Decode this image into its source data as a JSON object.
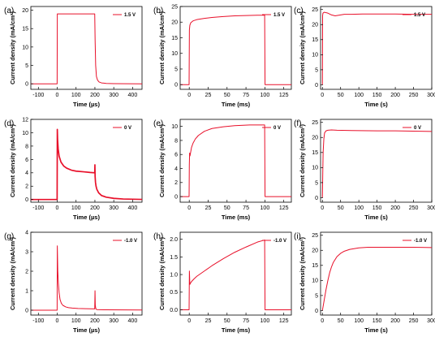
{
  "figure": {
    "colors": {
      "series": "#e8102a",
      "axis": "#000000",
      "background": "#ffffff"
    }
  },
  "chart_data": [
    {
      "panel": "(a)",
      "type": "line",
      "xlabel": "Time (µs)",
      "ylabel": "Current density (mA/cm²)",
      "xlim": [
        -140,
        450
      ],
      "xticks": [
        "-100",
        "0",
        "100",
        "200",
        "300",
        "400"
      ],
      "xtick_values": [
        -100,
        0,
        100,
        200,
        300,
        400
      ],
      "ylim": [
        -1.5,
        21
      ],
      "yticks": [
        "0",
        "5",
        "10",
        "15",
        "20"
      ],
      "ytick_values": [
        0,
        5,
        10,
        15,
        20
      ],
      "legend": "top-right",
      "series": [
        {
          "name": "1.5 V",
          "x": [
            -140,
            -0.5,
            0.5,
            199,
            201,
            204,
            208,
            214,
            222,
            235,
            260,
            300,
            450
          ],
          "y": [
            0,
            0,
            19.0,
            19.0,
            12.0,
            5.0,
            2.0,
            1.0,
            0.5,
            0.25,
            0.1,
            0.05,
            0.0
          ]
        }
      ]
    },
    {
      "panel": "(b)",
      "type": "line",
      "xlabel": "Time (ms)",
      "ylabel": "Current density (mA/cm²)",
      "xlim": [
        -12,
        135
      ],
      "xticks": [
        "0",
        "25",
        "50",
        "75",
        "100",
        "125"
      ],
      "xtick_values": [
        0,
        25,
        50,
        75,
        100,
        125
      ],
      "ylim": [
        -1.5,
        25
      ],
      "yticks": [
        "0",
        "5",
        "10",
        "15",
        "20",
        "25"
      ],
      "ytick_values": [
        0,
        5,
        10,
        15,
        20,
        25
      ],
      "legend": "top-right",
      "series": [
        {
          "name": "1.5 V",
          "x": [
            -12,
            -0.2,
            0.2,
            0.8,
            2,
            5,
            10,
            20,
            30,
            45,
            60,
            75,
            90,
            99.7,
            100.2,
            135
          ],
          "y": [
            0,
            0,
            17.5,
            19.0,
            19.8,
            20.4,
            20.8,
            21.2,
            21.5,
            21.8,
            22.0,
            22.1,
            22.2,
            22.2,
            0,
            0
          ]
        }
      ]
    },
    {
      "panel": "(c)",
      "type": "line",
      "xlabel": "Time (s)",
      "ylabel": "Current density (mA/cm²)",
      "xlim": [
        -5,
        300
      ],
      "xticks": [
        "0",
        "50",
        "100",
        "150",
        "200",
        "250",
        "300"
      ],
      "xtick_values": [
        0,
        50,
        100,
        150,
        200,
        250,
        300
      ],
      "ylim": [
        -1.5,
        26
      ],
      "yticks": [
        "0",
        "5",
        "10",
        "15",
        "20",
        "25"
      ],
      "ytick_values": [
        0,
        5,
        10,
        15,
        20,
        25
      ],
      "legend": "top-right",
      "series": [
        {
          "name": "1.5 V",
          "x": [
            0,
            0.6,
            1.5,
            5,
            15,
            25,
            35,
            45,
            60,
            80,
            110,
            150,
            200,
            250,
            300
          ],
          "y": [
            0,
            23.0,
            23.8,
            24.1,
            23.8,
            23.2,
            22.9,
            23.1,
            23.4,
            23.4,
            23.5,
            23.5,
            23.5,
            23.4,
            23.4
          ]
        }
      ]
    },
    {
      "panel": "(d)",
      "type": "line",
      "xlabel": "Time (µs)",
      "ylabel": "Current density (mA/cm²)",
      "xlim": [
        -140,
        450
      ],
      "xticks": [
        "-100",
        "0",
        "100",
        "200",
        "300",
        "400"
      ],
      "xtick_values": [
        -100,
        0,
        100,
        200,
        300,
        400
      ],
      "ylim": [
        -0.4,
        12
      ],
      "yticks": [
        "0",
        "2",
        "4",
        "6",
        "8",
        "10",
        "12"
      ],
      "ytick_values": [
        0,
        2,
        4,
        6,
        8,
        10,
        12
      ],
      "legend": "top-right",
      "series": [
        {
          "name": "0 V",
          "x": [
            -140,
            -0.5,
            0.5,
            2,
            5,
            10,
            20,
            35,
            50,
            75,
            100,
            140,
            175,
            199,
            200,
            201,
            203,
            206,
            210,
            220,
            235,
            260,
            300,
            350,
            450
          ],
          "y": [
            0,
            0,
            10.5,
            9.0,
            7.6,
            6.5,
            5.6,
            5.0,
            4.7,
            4.4,
            4.25,
            4.15,
            4.05,
            4.0,
            5.2,
            3.5,
            2.6,
            2.0,
            1.55,
            1.0,
            0.6,
            0.35,
            0.18,
            0.08,
            0.02
          ]
        }
      ]
    },
    {
      "panel": "(e)",
      "type": "line",
      "xlabel": "Time (ms)",
      "ylabel": "Current density (mA/cm²)",
      "xlim": [
        -12,
        135
      ],
      "xticks": [
        "0",
        "25",
        "50",
        "75",
        "100",
        "125"
      ],
      "xtick_values": [
        0,
        25,
        50,
        75,
        100,
        125
      ],
      "ylim": [
        -0.8,
        11
      ],
      "yticks": [
        "0",
        "2",
        "4",
        "6",
        "8",
        "10"
      ],
      "ytick_values": [
        0,
        2,
        4,
        6,
        8,
        10
      ],
      "legend": "top-right",
      "series": [
        {
          "name": "0 V",
          "x": [
            -12,
            -0.2,
            0.1,
            0.5,
            1,
            2,
            3,
            5,
            8,
            12,
            20,
            30,
            45,
            60,
            80,
            99.7,
            100.2,
            135
          ],
          "y": [
            0,
            0,
            4.5,
            6.2,
            5.8,
            6.4,
            7.0,
            7.6,
            8.2,
            8.7,
            9.3,
            9.7,
            9.95,
            10.1,
            10.2,
            10.2,
            0,
            0
          ]
        }
      ]
    },
    {
      "panel": "(f)",
      "type": "line",
      "xlabel": "Time (s)",
      "ylabel": "Current density (mA/cm²)",
      "xlim": [
        -5,
        300
      ],
      "xticks": [
        "0",
        "50",
        "100",
        "150",
        "200",
        "250",
        "300"
      ],
      "xtick_values": [
        0,
        50,
        100,
        150,
        200,
        250,
        300
      ],
      "ylim": [
        -1.5,
        26
      ],
      "yticks": [
        "0",
        "5",
        "10",
        "15",
        "20",
        "25"
      ],
      "ytick_values": [
        0,
        5,
        10,
        15,
        20,
        25
      ],
      "legend": "top-right",
      "series": [
        {
          "name": "0 V",
          "x": [
            0,
            1,
            2,
            4,
            6,
            10,
            15,
            25,
            40,
            80,
            150,
            200,
            250,
            300
          ],
          "y": [
            0,
            8.0,
            15.0,
            19.5,
            21.5,
            22.2,
            22.4,
            22.5,
            22.4,
            22.3,
            22.2,
            22.2,
            22.1,
            22.0
          ]
        }
      ]
    },
    {
      "panel": "(g)",
      "type": "line",
      "xlabel": "Time (µs)",
      "ylabel": "Current density (mA/cm²)",
      "xlim": [
        -140,
        450
      ],
      "xticks": [
        "-100",
        "0",
        "100",
        "200",
        "300",
        "400"
      ],
      "xtick_values": [
        -100,
        0,
        100,
        200,
        300,
        400
      ],
      "ylim": [
        -0.25,
        4
      ],
      "yticks": [
        "0",
        "1",
        "2",
        "3",
        "4"
      ],
      "ytick_values": [
        0,
        1,
        2,
        3,
        4
      ],
      "legend": "top-right",
      "series": [
        {
          "name": "-1.0 V",
          "x": [
            -140,
            -0.5,
            0.5,
            3,
            6,
            10,
            15,
            22,
            30,
            45,
            60,
            80,
            110,
            150,
            199,
            200.5,
            202,
            205,
            210,
            260,
            450
          ],
          "y": [
            0,
            0,
            3.3,
            2.0,
            1.4,
            0.9,
            0.55,
            0.35,
            0.25,
            0.17,
            0.13,
            0.11,
            0.09,
            0.08,
            0.07,
            1.0,
            0.25,
            0.07,
            0.03,
            0.02,
            0.01
          ]
        }
      ]
    },
    {
      "panel": "(h)",
      "type": "line",
      "xlabel": "Time (ms)",
      "ylabel": "Current density (mA/cm²)",
      "xlim": [
        -12,
        135
      ],
      "xticks": [
        "0",
        "25",
        "50",
        "75",
        "100",
        "125"
      ],
      "xtick_values": [
        0,
        25,
        50,
        75,
        100,
        125
      ],
      "ylim": [
        -0.15,
        2.2
      ],
      "yticks": [
        "0.0",
        "0.5",
        "1.0",
        "1.5",
        "2.0"
      ],
      "ytick_values": [
        0,
        0.5,
        1.0,
        1.5,
        2.0
      ],
      "legend": "top-right",
      "series": [
        {
          "name": "-1.0 V",
          "x": [
            -12,
            -0.2,
            0.2,
            0.8,
            1.5,
            3,
            6,
            10,
            20,
            30,
            45,
            60,
            75,
            90,
            99.7,
            100.2,
            135
          ],
          "y": [
            0,
            0,
            1.1,
            0.72,
            0.75,
            0.8,
            0.87,
            0.95,
            1.1,
            1.25,
            1.45,
            1.63,
            1.78,
            1.92,
            1.98,
            0,
            0
          ]
        }
      ]
    },
    {
      "panel": "(i)",
      "type": "line",
      "xlabel": "Time (s)",
      "ylabel": "Current density (mA/cm²)",
      "xlim": [
        -5,
        300
      ],
      "xticks": [
        "0",
        "50",
        "100",
        "150",
        "200",
        "250",
        "300"
      ],
      "xtick_values": [
        0,
        50,
        100,
        150,
        200,
        250,
        300
      ],
      "ylim": [
        -1.5,
        26
      ],
      "yticks": [
        "0",
        "5",
        "10",
        "15",
        "20",
        "25"
      ],
      "ytick_values": [
        0,
        5,
        10,
        15,
        20,
        25
      ],
      "legend": "top-right",
      "series": [
        {
          "name": "-1.0 V",
          "x": [
            0,
            5,
            10,
            15,
            20,
            25,
            30,
            40,
            50,
            60,
            75,
            100,
            125,
            150,
            200,
            250,
            300
          ],
          "y": [
            0,
            3.5,
            7.0,
            10.0,
            12.6,
            14.5,
            16.0,
            17.9,
            19.0,
            19.7,
            20.3,
            20.8,
            21.0,
            21.0,
            21.0,
            21.0,
            20.9
          ]
        }
      ]
    }
  ]
}
